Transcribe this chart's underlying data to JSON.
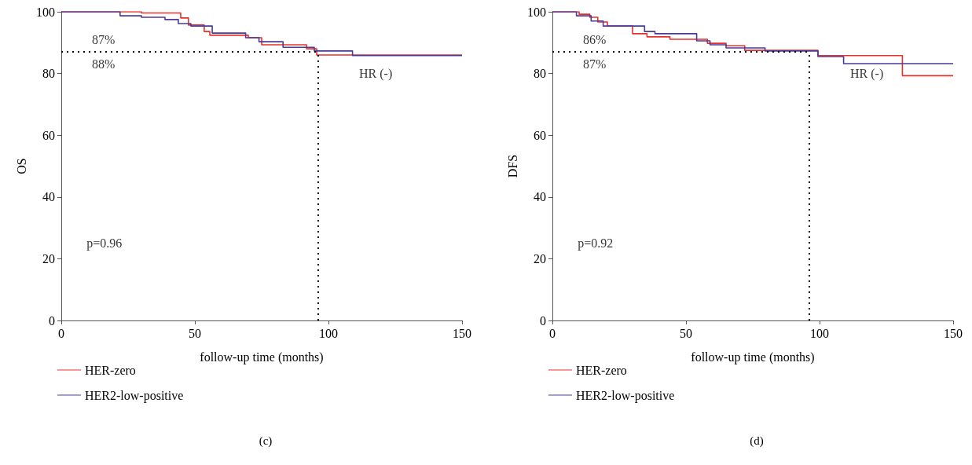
{
  "chart_data": [
    {
      "type": "step",
      "title": "(c)",
      "xlabel": "follow-up time (months)",
      "ylabel": "OS",
      "xlim": [
        0,
        150
      ],
      "xticks": [
        0,
        50,
        100,
        150
      ],
      "ylim": [
        0,
        100
      ],
      "yticks": [
        0,
        20,
        40,
        60,
        80,
        100
      ],
      "grid": false,
      "legend": "bottom left",
      "annotations": [
        "87%",
        "88%",
        "HR (-)",
        "p=0.96"
      ],
      "ref_lines": [
        {
          "axis": "y",
          "value": 87,
          "color": "#000000",
          "line_style": "dotted"
        },
        {
          "axis": "x",
          "value": 96,
          "color": "#000000",
          "line_style": "dotted"
        }
      ],
      "series": [
        {
          "name": "HER-zero",
          "color": "#e8302a",
          "x": [
            0,
            30,
            44.7,
            47.6,
            53.5,
            55.6,
            70,
            75,
            91.8,
            95.6,
            150
          ],
          "values": [
            100,
            99.6,
            98,
            95.7,
            93.6,
            92.4,
            91.6,
            89.3,
            88,
            86,
            86
          ]
        },
        {
          "name": "HER2-low-positive",
          "color": "#4a3a9a",
          "x": [
            0,
            22,
            30,
            38.8,
            43.8,
            48.5,
            56.5,
            69,
            74,
            83,
            94.7,
            109,
            150
          ],
          "values": [
            100,
            98.7,
            98.2,
            97.5,
            96.2,
            95.4,
            93.1,
            91.6,
            90.3,
            88.5,
            87.3,
            85.8,
            85.8
          ]
        }
      ]
    },
    {
      "type": "step",
      "title": "(d)",
      "xlabel": "follow-up time (months)",
      "ylabel": "DFS",
      "xlim": [
        0,
        150
      ],
      "xticks": [
        0,
        50,
        100,
        150
      ],
      "ylim": [
        0,
        100
      ],
      "yticks": [
        0,
        20,
        40,
        60,
        80,
        100
      ],
      "grid": false,
      "legend": "bottom left",
      "annotations": [
        "86%",
        "87%",
        "HR (-)",
        "p=0.92"
      ],
      "ref_lines": [
        {
          "axis": "y",
          "value": 87,
          "color": "#000000",
          "line_style": "dotted"
        },
        {
          "axis": "x",
          "value": 96,
          "color": "#000000",
          "line_style": "dotted"
        }
      ],
      "series": [
        {
          "name": "HER-zero",
          "color": "#e8302a",
          "x": [
            0,
            10,
            14,
            17,
            20.6,
            30,
            35.4,
            44,
            58,
            65,
            72,
            99.4,
            131,
            150
          ],
          "values": [
            100,
            99.2,
            98.2,
            96.7,
            95.4,
            92.9,
            91.9,
            91.1,
            89.8,
            89,
            87.5,
            85.8,
            79.3,
            79.3
          ]
        },
        {
          "name": "HER2-low-positive",
          "color": "#4a3a9a",
          "x": [
            0,
            9,
            14.5,
            19,
            34.5,
            38.4,
            54,
            59,
            65,
            79.6,
            99.4,
            109,
            150
          ],
          "values": [
            100,
            98.7,
            97,
            95.4,
            93.6,
            92.9,
            90.6,
            89.3,
            88.3,
            87.3,
            85.5,
            83.2,
            83.2
          ]
        }
      ]
    }
  ]
}
